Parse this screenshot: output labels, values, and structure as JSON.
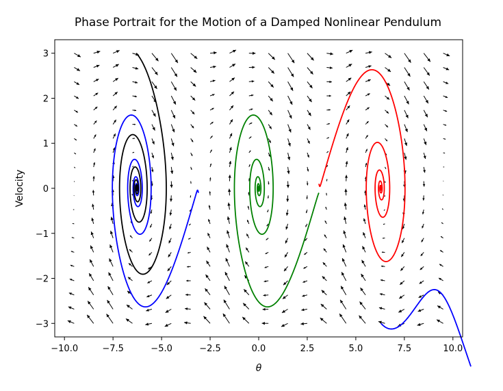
{
  "chart_data": {
    "type": "line",
    "title": "Phase Portrait for the Motion of a Damped Nonlinear Pendulum",
    "xlabel": "θ",
    "ylabel": "Velocity",
    "xlim": [
      -10.5,
      10.5
    ],
    "ylim": [
      -3.3,
      3.3
    ],
    "xticks": [
      -10.0,
      -7.5,
      -5.0,
      -2.5,
      0.0,
      2.5,
      5.0,
      7.5,
      10.0
    ],
    "xtick_labels": [
      "−10.0",
      "−7.5",
      "−5.0",
      "−2.5",
      "0.0",
      "2.5",
      "5.0",
      "7.5",
      "10.0"
    ],
    "yticks": [
      -3,
      -2,
      -1,
      0,
      1,
      2,
      3
    ],
    "ytick_labels": [
      "−3",
      "−2",
      "−1",
      "0",
      "1",
      "2",
      "3"
    ],
    "grid": false,
    "vector_field": {
      "equation": "theta' = v, v' = -0.5 v - 3 sin(theta)",
      "damping": 0.5,
      "g_over_l": 3.0,
      "x_range": [
        -9.5,
        9.5
      ],
      "y_range": [
        -3.0,
        3.0
      ],
      "nx": 20,
      "ny": 20,
      "color": "#000000"
    },
    "series": [
      {
        "color": "#0000ff",
        "start": [
          -3.1,
          -0.1
        ],
        "t_end": 25
      },
      {
        "color": "#008000",
        "start": [
          3.1,
          -0.1
        ],
        "t_end": 25
      },
      {
        "color": "#ff0000",
        "start": [
          3.1,
          0.1
        ],
        "t_end": 25
      },
      {
        "color": "#000000",
        "start": [
          -6.3,
          3.0
        ],
        "t_end": 30
      },
      {
        "color": "#0000ff",
        "start": [
          6.3,
          -3.0
        ],
        "t_end": 30,
        "backward": true
      }
    ]
  }
}
